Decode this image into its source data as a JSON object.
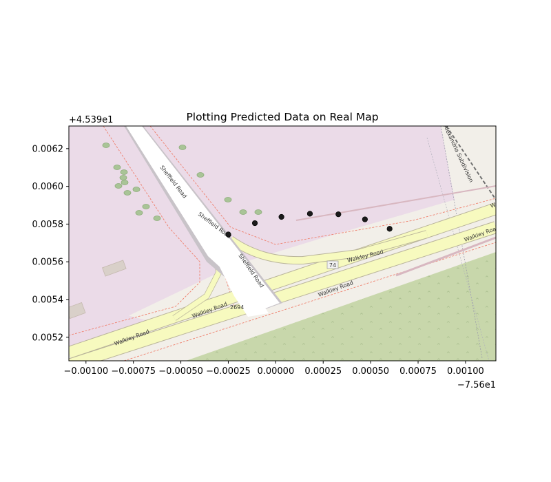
{
  "chart_data": {
    "type": "scatter",
    "title": "Plotting Predicted Data on Real Map",
    "xlabel": "",
    "ylabel": "",
    "xlim": [
      -0.00109,
      0.00116
    ],
    "ylim": [
      0.00632,
      0.005075
    ],
    "y_inverted": true,
    "x_offset_label": "−7.56e1",
    "y_offset_label": "+4.539e1",
    "x_ticks": [
      -0.001,
      -0.00075,
      -0.0005,
      -0.00025,
      0.0,
      0.00025,
      0.0005,
      0.00075,
      0.001
    ],
    "x_tick_labels": [
      "−0.00100",
      "−0.00075",
      "−0.00050",
      "−0.00025",
      "0.00000",
      "0.00025",
      "0.00050",
      "0.00075",
      "0.00100"
    ],
    "y_ticks": [
      0.0052,
      0.0054,
      0.0056,
      0.0058,
      0.006,
      0.0062
    ],
    "y_tick_labels": [
      "0.0052",
      "0.0054",
      "0.0056",
      "0.0058",
      "0.0060",
      "0.0062"
    ],
    "grid": false,
    "marker_color": "#1a1a1a",
    "points": {
      "x": [
        -0.00025,
        -0.00011,
        3e-05,
        0.00018,
        0.00033,
        0.00047,
        0.0006
      ],
      "y": [
        0.005745,
        0.005805,
        0.005838,
        0.005855,
        0.005852,
        0.005825,
        0.005775
      ]
    }
  },
  "basemap": {
    "road_labels": [
      "Sheffield Road",
      "Sheffield Road",
      "Sheffield Road",
      "Walkley Road",
      "Walkley Road",
      "Walkley Road",
      "Walkley Road",
      "Walkley Road",
      "Walkley Road",
      "Walkley Road"
    ],
    "route_shield": "74",
    "house_number": "2694",
    "rail_label": "Alexandria Subdivision",
    "colors": {
      "land": "#f2efe9",
      "industrial": "#ebdbe8",
      "park": "#c8d7ab",
      "road_secondary": "#f7fabf",
      "road_white": "#ffffff",
      "road_casing": "#b9b49a",
      "boundary": "#ef7f6c"
    }
  }
}
